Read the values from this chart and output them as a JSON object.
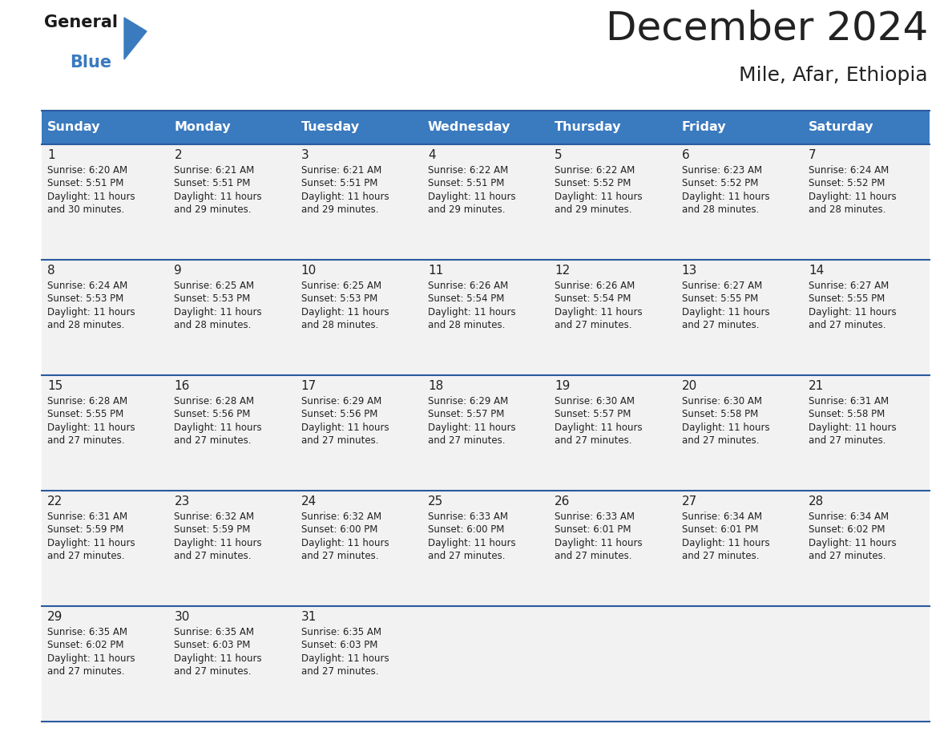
{
  "title": "December 2024",
  "subtitle": "Mile, Afar, Ethiopia",
  "header_color": "#3a7abf",
  "header_text_color": "#ffffff",
  "cell_bg_color": "#f2f2f2",
  "border_color": "#2a5a9f",
  "text_color": "#222222",
  "days_of_week": [
    "Sunday",
    "Monday",
    "Tuesday",
    "Wednesday",
    "Thursday",
    "Friday",
    "Saturday"
  ],
  "calendar_data": [
    [
      {
        "day": "1",
        "sunrise": "6:20 AM",
        "sunset": "5:51 PM",
        "daylight_hrs": "11 hours",
        "daylight_min": "and 30 minutes."
      },
      {
        "day": "2",
        "sunrise": "6:21 AM",
        "sunset": "5:51 PM",
        "daylight_hrs": "11 hours",
        "daylight_min": "and 29 minutes."
      },
      {
        "day": "3",
        "sunrise": "6:21 AM",
        "sunset": "5:51 PM",
        "daylight_hrs": "11 hours",
        "daylight_min": "and 29 minutes."
      },
      {
        "day": "4",
        "sunrise": "6:22 AM",
        "sunset": "5:51 PM",
        "daylight_hrs": "11 hours",
        "daylight_min": "and 29 minutes."
      },
      {
        "day": "5",
        "sunrise": "6:22 AM",
        "sunset": "5:52 PM",
        "daylight_hrs": "11 hours",
        "daylight_min": "and 29 minutes."
      },
      {
        "day": "6",
        "sunrise": "6:23 AM",
        "sunset": "5:52 PM",
        "daylight_hrs": "11 hours",
        "daylight_min": "and 28 minutes."
      },
      {
        "day": "7",
        "sunrise": "6:24 AM",
        "sunset": "5:52 PM",
        "daylight_hrs": "11 hours",
        "daylight_min": "and 28 minutes."
      }
    ],
    [
      {
        "day": "8",
        "sunrise": "6:24 AM",
        "sunset": "5:53 PM",
        "daylight_hrs": "11 hours",
        "daylight_min": "and 28 minutes."
      },
      {
        "day": "9",
        "sunrise": "6:25 AM",
        "sunset": "5:53 PM",
        "daylight_hrs": "11 hours",
        "daylight_min": "and 28 minutes."
      },
      {
        "day": "10",
        "sunrise": "6:25 AM",
        "sunset": "5:53 PM",
        "daylight_hrs": "11 hours",
        "daylight_min": "and 28 minutes."
      },
      {
        "day": "11",
        "sunrise": "6:26 AM",
        "sunset": "5:54 PM",
        "daylight_hrs": "11 hours",
        "daylight_min": "and 28 minutes."
      },
      {
        "day": "12",
        "sunrise": "6:26 AM",
        "sunset": "5:54 PM",
        "daylight_hrs": "11 hours",
        "daylight_min": "and 27 minutes."
      },
      {
        "day": "13",
        "sunrise": "6:27 AM",
        "sunset": "5:55 PM",
        "daylight_hrs": "11 hours",
        "daylight_min": "and 27 minutes."
      },
      {
        "day": "14",
        "sunrise": "6:27 AM",
        "sunset": "5:55 PM",
        "daylight_hrs": "11 hours",
        "daylight_min": "and 27 minutes."
      }
    ],
    [
      {
        "day": "15",
        "sunrise": "6:28 AM",
        "sunset": "5:55 PM",
        "daylight_hrs": "11 hours",
        "daylight_min": "and 27 minutes."
      },
      {
        "day": "16",
        "sunrise": "6:28 AM",
        "sunset": "5:56 PM",
        "daylight_hrs": "11 hours",
        "daylight_min": "and 27 minutes."
      },
      {
        "day": "17",
        "sunrise": "6:29 AM",
        "sunset": "5:56 PM",
        "daylight_hrs": "11 hours",
        "daylight_min": "and 27 minutes."
      },
      {
        "day": "18",
        "sunrise": "6:29 AM",
        "sunset": "5:57 PM",
        "daylight_hrs": "11 hours",
        "daylight_min": "and 27 minutes."
      },
      {
        "day": "19",
        "sunrise": "6:30 AM",
        "sunset": "5:57 PM",
        "daylight_hrs": "11 hours",
        "daylight_min": "and 27 minutes."
      },
      {
        "day": "20",
        "sunrise": "6:30 AM",
        "sunset": "5:58 PM",
        "daylight_hrs": "11 hours",
        "daylight_min": "and 27 minutes."
      },
      {
        "day": "21",
        "sunrise": "6:31 AM",
        "sunset": "5:58 PM",
        "daylight_hrs": "11 hours",
        "daylight_min": "and 27 minutes."
      }
    ],
    [
      {
        "day": "22",
        "sunrise": "6:31 AM",
        "sunset": "5:59 PM",
        "daylight_hrs": "11 hours",
        "daylight_min": "and 27 minutes."
      },
      {
        "day": "23",
        "sunrise": "6:32 AM",
        "sunset": "5:59 PM",
        "daylight_hrs": "11 hours",
        "daylight_min": "and 27 minutes."
      },
      {
        "day": "24",
        "sunrise": "6:32 AM",
        "sunset": "6:00 PM",
        "daylight_hrs": "11 hours",
        "daylight_min": "and 27 minutes."
      },
      {
        "day": "25",
        "sunrise": "6:33 AM",
        "sunset": "6:00 PM",
        "daylight_hrs": "11 hours",
        "daylight_min": "and 27 minutes."
      },
      {
        "day": "26",
        "sunrise": "6:33 AM",
        "sunset": "6:01 PM",
        "daylight_hrs": "11 hours",
        "daylight_min": "and 27 minutes."
      },
      {
        "day": "27",
        "sunrise": "6:34 AM",
        "sunset": "6:01 PM",
        "daylight_hrs": "11 hours",
        "daylight_min": "and 27 minutes."
      },
      {
        "day": "28",
        "sunrise": "6:34 AM",
        "sunset": "6:02 PM",
        "daylight_hrs": "11 hours",
        "daylight_min": "and 27 minutes."
      }
    ],
    [
      {
        "day": "29",
        "sunrise": "6:35 AM",
        "sunset": "6:02 PM",
        "daylight_hrs": "11 hours",
        "daylight_min": "and 27 minutes."
      },
      {
        "day": "30",
        "sunrise": "6:35 AM",
        "sunset": "6:03 PM",
        "daylight_hrs": "11 hours",
        "daylight_min": "and 27 minutes."
      },
      {
        "day": "31",
        "sunrise": "6:35 AM",
        "sunset": "6:03 PM",
        "daylight_hrs": "11 hours",
        "daylight_min": "and 27 minutes."
      },
      null,
      null,
      null,
      null
    ]
  ],
  "logo_general_color": "#1a1a1a",
  "logo_blue_color": "#3a7abf",
  "figsize": [
    11.88,
    9.18
  ],
  "dpi": 100
}
